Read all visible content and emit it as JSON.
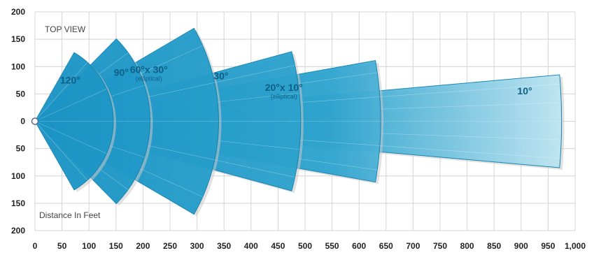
{
  "chart_data": {
    "type": "diagram",
    "view_label": "TOP VIEW",
    "distance_label": "Distance In Feet",
    "x_ticks": [
      "0",
      "50",
      "100",
      "150",
      "200",
      "250",
      "300",
      "350",
      "400",
      "450",
      "500",
      "550",
      "600",
      "650",
      "700",
      "750",
      "800",
      "850",
      "900",
      "950",
      "1,000"
    ],
    "y_ticks": [
      "200",
      "150",
      "100",
      "50",
      "0",
      "50",
      "100",
      "150",
      "200"
    ],
    "xlim": [
      0,
      1000
    ],
    "ylim": [
      -200,
      200
    ],
    "grid": true,
    "colors": {
      "beam_dark": "#1391c4",
      "beam_light": "#bfe6f3",
      "beam_stroke": "#0b7fae",
      "shadow": "#c9c9c9",
      "grid": "#d4d4d4",
      "text": "#0f5f86"
    },
    "beams": [
      {
        "label": "120°",
        "note": "",
        "half_angle_deg": 60,
        "range_ft": 145
      },
      {
        "label": "90°",
        "note": "",
        "half_angle_deg": 45,
        "range_ft": 213
      },
      {
        "label": "60°x 30°",
        "note": "(elliptical)",
        "half_angle_deg": 30,
        "range_ft": 340
      },
      {
        "label": "30°",
        "note": "",
        "half_angle_deg": 15,
        "range_ft": 492
      },
      {
        "label": "20°x 10°",
        "note": "(elliptical)",
        "half_angle_deg": 10,
        "range_ft": 640
      },
      {
        "label": "10°",
        "note": "",
        "half_angle_deg": 5,
        "range_ft": 975
      }
    ]
  }
}
